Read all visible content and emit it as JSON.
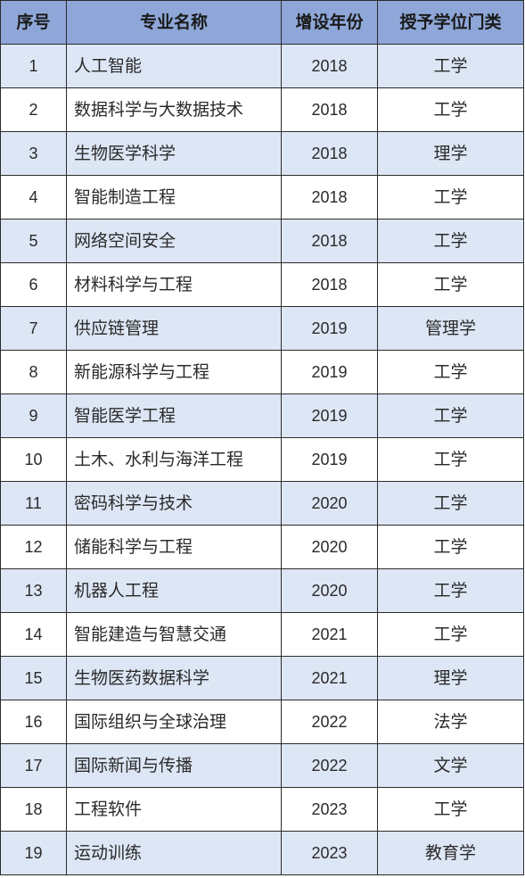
{
  "table": {
    "headers": [
      "序号",
      "专业名称",
      "增设年份",
      "授予学位门类"
    ],
    "rows": [
      {
        "no": "1",
        "name": "人工智能",
        "year": "2018",
        "degree": "工学"
      },
      {
        "no": "2",
        "name": "数据科学与大数据技术",
        "year": "2018",
        "degree": "工学"
      },
      {
        "no": "3",
        "name": "生物医学科学",
        "year": "2018",
        "degree": "理学"
      },
      {
        "no": "4",
        "name": "智能制造工程",
        "year": "2018",
        "degree": "工学"
      },
      {
        "no": "5",
        "name": "网络空间安全",
        "year": "2018",
        "degree": "工学"
      },
      {
        "no": "6",
        "name": "材料科学与工程",
        "year": "2018",
        "degree": "工学"
      },
      {
        "no": "7",
        "name": "供应链管理",
        "year": "2019",
        "degree": "管理学"
      },
      {
        "no": "8",
        "name": "新能源科学与工程",
        "year": "2019",
        "degree": "工学"
      },
      {
        "no": "9",
        "name": "智能医学工程",
        "year": "2019",
        "degree": "工学"
      },
      {
        "no": "10",
        "name": "土木、水利与海洋工程",
        "year": "2019",
        "degree": "工学"
      },
      {
        "no": "11",
        "name": "密码科学与技术",
        "year": "2020",
        "degree": "工学"
      },
      {
        "no": "12",
        "name": "储能科学与工程",
        "year": "2020",
        "degree": "工学"
      },
      {
        "no": "13",
        "name": "机器人工程",
        "year": "2020",
        "degree": "工学"
      },
      {
        "no": "14",
        "name": "智能建造与智慧交通",
        "year": "2021",
        "degree": "工学"
      },
      {
        "no": "15",
        "name": "生物医药数据科学",
        "year": "2021",
        "degree": "理学"
      },
      {
        "no": "16",
        "name": "国际组织与全球治理",
        "year": "2022",
        "degree": "法学"
      },
      {
        "no": "17",
        "name": "国际新闻与传播",
        "year": "2022",
        "degree": "文学"
      },
      {
        "no": "18",
        "name": "工程软件",
        "year": "2023",
        "degree": "工学"
      },
      {
        "no": "19",
        "name": "运动训练",
        "year": "2023",
        "degree": "教育学"
      }
    ]
  },
  "colors": {
    "header_bg": "#8ea7d8",
    "stripe_bg": "#dde6f5",
    "plain_bg": "#ffffff",
    "border": "#2b2b2b"
  }
}
